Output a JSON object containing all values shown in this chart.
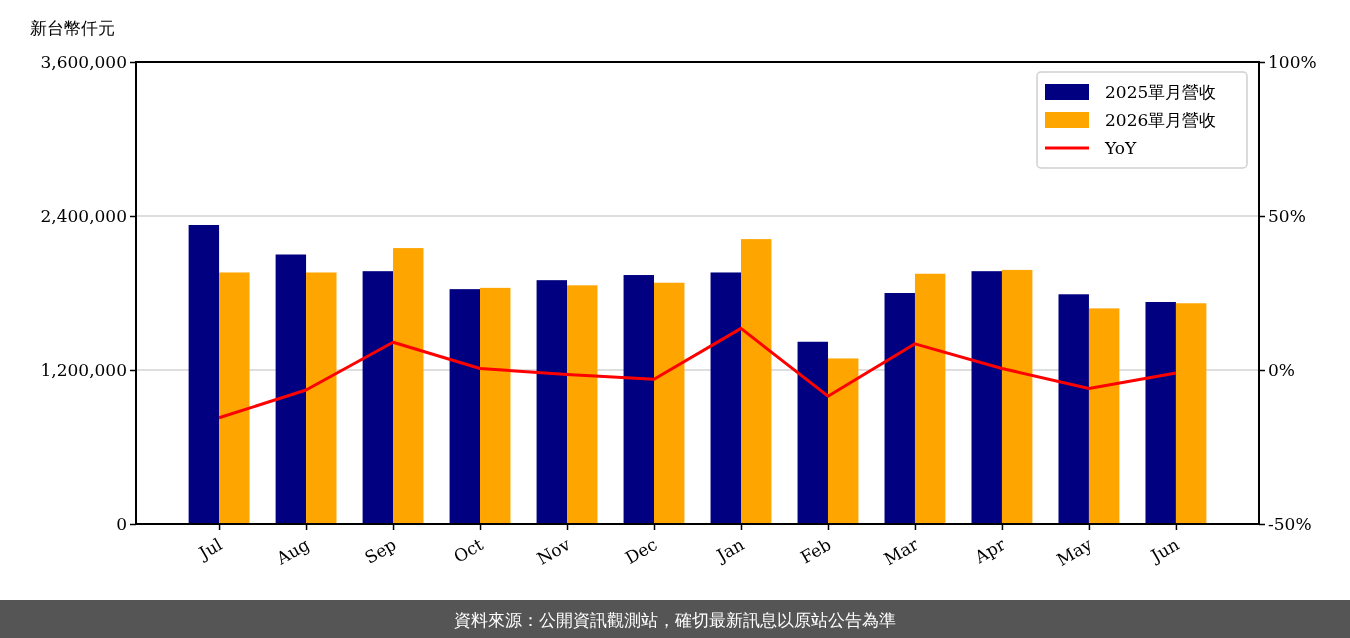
{
  "chart_data": {
    "type": "bar",
    "categories": [
      "Jul",
      "Aug",
      "Sep",
      "Oct",
      "Nov",
      "Dec",
      "Jan",
      "Feb",
      "Mar",
      "Apr",
      "May",
      "Jun"
    ],
    "ylabel": "新台幣仟元",
    "series": [
      {
        "name": "2025單月營收",
        "color": "#000080",
        "values": [
          2330000,
          2100000,
          1970000,
          1830000,
          1900000,
          1940000,
          1960000,
          1420000,
          1800000,
          1970000,
          1790000,
          1730000
        ]
      },
      {
        "name": "2026單月營收",
        "color": "#ffa500",
        "values": [
          1960000,
          1960000,
          2150000,
          1840000,
          1860000,
          1880000,
          2220000,
          1290000,
          1950000,
          1980000,
          1680000,
          1720000
        ]
      },
      {
        "name": "YoY",
        "type": "line",
        "axis": "y2",
        "color": "#ff0000",
        "values": [
          -15.5,
          -6.5,
          9,
          0.5,
          -1.5,
          -3,
          13.5,
          -8.5,
          8.5,
          0.5,
          -6,
          -1
        ]
      }
    ],
    "ylim": [
      0,
      3600000
    ],
    "yticks": [
      0,
      {
        "value": 1200000,
        "label": "1,200,000"
      },
      {
        "value": 2400000,
        "label": "2,400,000"
      },
      {
        "value": 3600000,
        "label": "3,600,000"
      }
    ],
    "y2lim": [
      -50,
      100
    ],
    "y2ticks": [
      {
        "value": -50,
        "label": "-50%"
      },
      {
        "value": 0,
        "label": "0%"
      },
      {
        "value": 50,
        "label": "50%"
      },
      {
        "value": 100,
        "label": "100%"
      }
    ],
    "grid": "y",
    "legend": "top right",
    "annotations": [
      "資料來源：公開資訊觀測站，確切最新訊息以原站公告為準"
    ]
  }
}
